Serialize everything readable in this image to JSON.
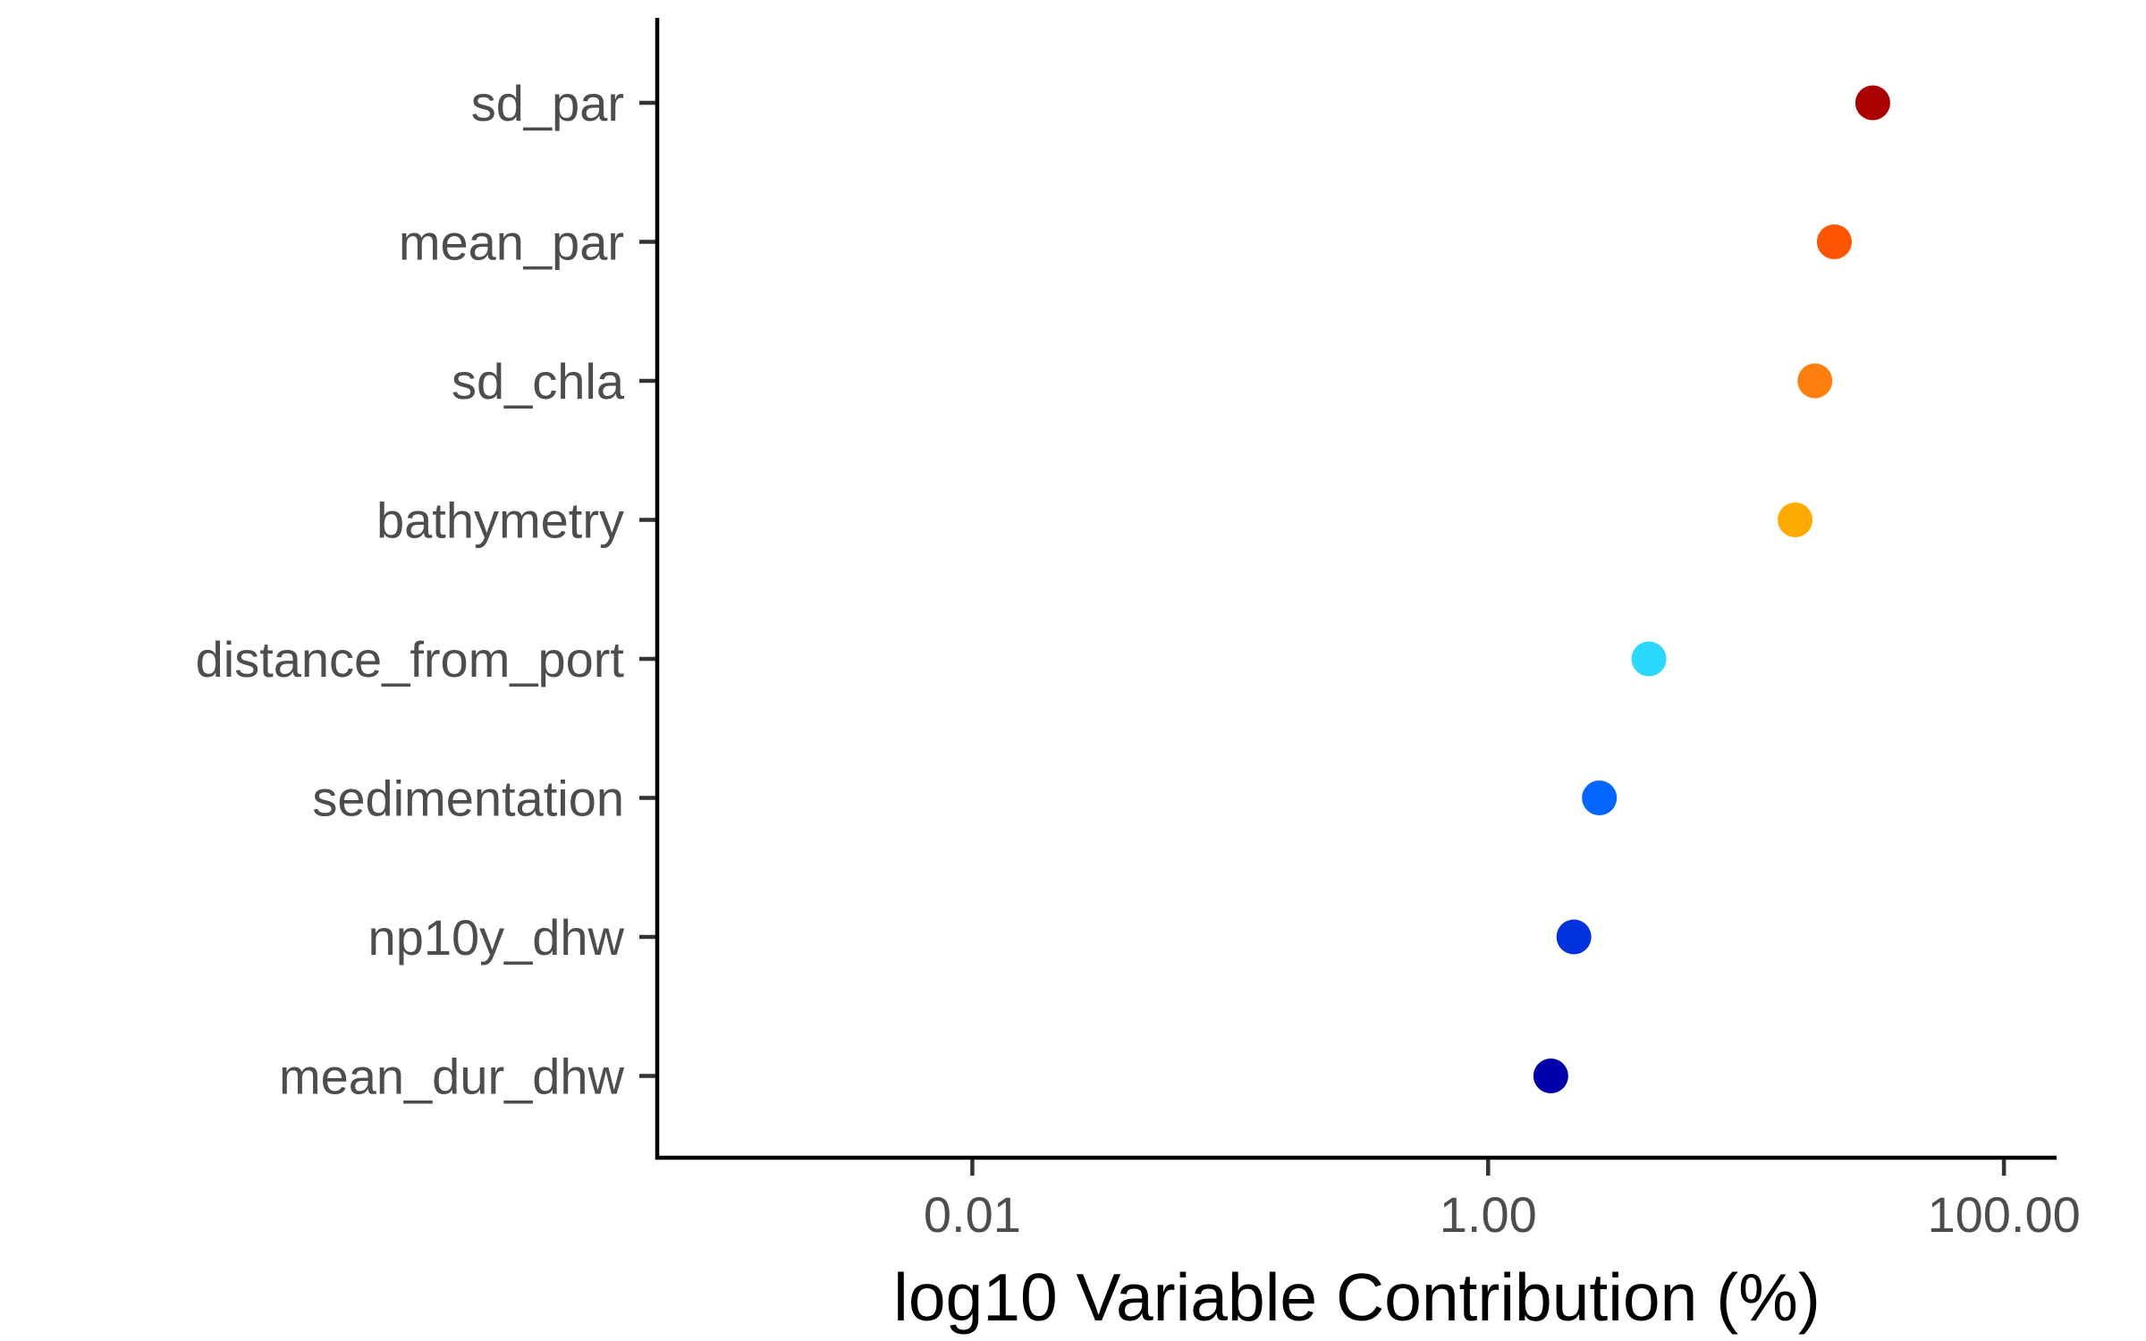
{
  "chart_data": {
    "type": "scatter",
    "title": "",
    "xlabel": "log10 Variable Contribution (%)",
    "ylabel": "",
    "x_scale": "log10",
    "xlim": [
      0.0006,
      160
    ],
    "x_ticks": [
      0.01,
      1,
      100
    ],
    "x_tick_labels": [
      "0.01",
      "1.00",
      "100.00"
    ],
    "grid": false,
    "legend": "none",
    "categories": [
      "sd_par",
      "mean_par",
      "sd_chla",
      "bathymetry",
      "distance_from_port",
      "sedimentation",
      "np10y_dhw",
      "mean_dur_dhw"
    ],
    "values": [
      31.0,
      22.0,
      18.5,
      15.5,
      4.2,
      2.7,
      2.15,
      1.75
    ],
    "point_colors": [
      "#AA0000",
      "#FF5500",
      "#FF7F0E",
      "#FFAA00",
      "#2BD9FF",
      "#0066FF",
      "#0033DD",
      "#0000AA"
    ]
  }
}
